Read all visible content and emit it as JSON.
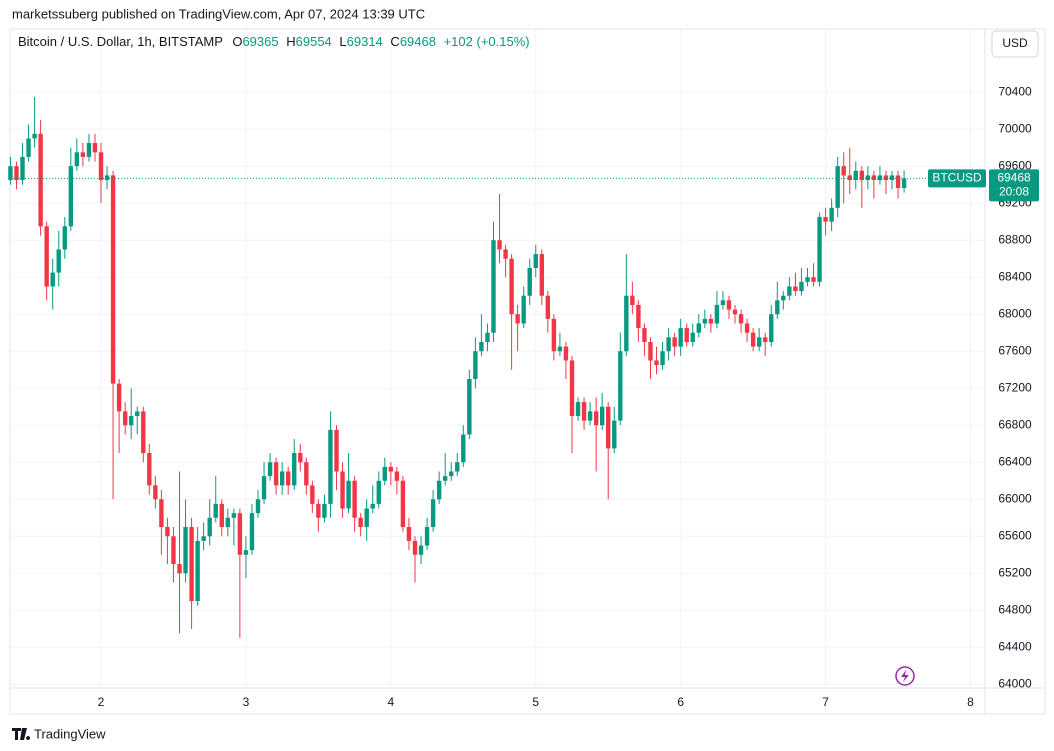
{
  "header": {
    "published": "marketssuberg published on TradingView.com, Apr 07, 2024 13:39 UTC",
    "symbol": "Bitcoin / U.S. Dollar, 1h, BITSTAMP",
    "o_label": "O",
    "open": 69365,
    "h_label": "H",
    "high": 69554,
    "l_label": "L",
    "low": 69314,
    "c_label": "C",
    "close": 69468,
    "change": "+102 (+0.15%)"
  },
  "currency": "USD",
  "logo": "TradingView",
  "chart_data": {
    "type": "candlestick",
    "x": [
      1.375,
      1.4167,
      1.4583,
      1.5,
      1.5417,
      1.5833,
      1.625,
      1.6667,
      1.7083,
      1.75,
      1.7917,
      1.8333,
      1.875,
      1.9167,
      1.9583,
      2,
      2.0417,
      2.0833,
      2.125,
      2.1667,
      2.2083,
      2.25,
      2.2917,
      2.3333,
      2.375,
      2.4167,
      2.4583,
      2.5,
      2.5417,
      2.5833,
      2.625,
      2.6667,
      2.7083,
      2.75,
      2.7917,
      2.8333,
      2.875,
      2.9167,
      2.9583,
      3,
      3.0417,
      3.0833,
      3.125,
      3.1667,
      3.2083,
      3.25,
      3.2917,
      3.3333,
      3.375,
      3.4167,
      3.4583,
      3.5,
      3.5417,
      3.5833,
      3.625,
      3.6667,
      3.7083,
      3.75,
      3.7917,
      3.8333,
      3.875,
      3.9167,
      3.9583,
      4,
      4.0417,
      4.0833,
      4.125,
      4.1667,
      4.2083,
      4.25,
      4.2917,
      4.3333,
      4.375,
      4.4167,
      4.4583,
      4.5,
      4.5417,
      4.5833,
      4.625,
      4.6667,
      4.7083,
      4.75,
      4.7917,
      4.8333,
      4.875,
      4.9167,
      4.9583,
      5,
      5.0417,
      5.0833,
      5.125,
      5.1667,
      5.2083,
      5.25,
      5.2917,
      5.3333,
      5.375,
      5.4167,
      5.4583,
      5.5,
      5.5417,
      5.5833,
      5.625,
      5.6667,
      5.7083,
      5.75,
      5.7917,
      5.8333,
      5.875,
      5.9167,
      5.9583,
      6,
      6.0417,
      6.0833,
      6.125,
      6.1667,
      6.2083,
      6.25,
      6.2917,
      6.3333,
      6.375,
      6.4167,
      6.4583,
      6.5,
      6.5417,
      6.5833,
      6.625,
      6.6667,
      6.7083,
      6.75,
      6.7917,
      6.8333,
      6.875,
      6.9167,
      6.9583,
      7,
      7.0417,
      7.0833,
      7.125,
      7.1667,
      7.2083,
      7.25,
      7.2917,
      7.3333,
      7.375,
      7.4167,
      7.4583,
      7.5,
      7.5417
    ],
    "open": [
      69450,
      69600,
      69450,
      69700,
      69900,
      69950,
      68950,
      68300,
      68450,
      68700,
      68950,
      69600,
      69750,
      69700,
      69850,
      69750,
      69450,
      69500,
      67250,
      66950,
      66800,
      66900,
      66950,
      66500,
      66150,
      66000,
      65700,
      65600,
      65300,
      65200,
      65700,
      64900,
      65550,
      65600,
      65800,
      65950,
      65700,
      65800,
      65850,
      65400,
      65450,
      65850,
      66000,
      66250,
      66400,
      66150,
      66300,
      66150,
      66500,
      66400,
      66150,
      65950,
      65800,
      65950,
      66750,
      66300,
      65900,
      66200,
      65800,
      65700,
      65900,
      65950,
      66200,
      66350,
      66300,
      66200,
      65700,
      65550,
      65400,
      65500,
      65700,
      66000,
      66200,
      66250,
      66300,
      66400,
      66700,
      67300,
      67600,
      67700,
      67800,
      68800,
      68700,
      68600,
      68000,
      67900,
      68200,
      68500,
      68650,
      68200,
      67950,
      67600,
      67650,
      67500,
      66900,
      67050,
      66850,
      66950,
      66800,
      67000,
      66550,
      66850,
      67600,
      68200,
      68100,
      67850,
      67700,
      67500,
      67450,
      67600,
      67750,
      67650,
      67850,
      67700,
      67800,
      67900,
      67950,
      67900,
      68100,
      68150,
      68050,
      68000,
      67900,
      67800,
      67650,
      67750,
      67700,
      68000,
      68150,
      68200,
      68300,
      68250,
      68350,
      68400,
      68350,
      69050,
      69000,
      69150,
      69600,
      69500,
      69450,
      69550,
      69450,
      69500,
      69450,
      69500,
      69450,
      69500,
      69365
    ],
    "high": [
      69700,
      69650,
      69850,
      70050,
      70350,
      70100,
      69000,
      68600,
      68900,
      69050,
      69800,
      69900,
      69850,
      69950,
      69950,
      69850,
      69600,
      69550,
      67300,
      67050,
      67200,
      67000,
      67000,
      66600,
      66250,
      66100,
      65800,
      65700,
      66300,
      66000,
      65800,
      65700,
      65750,
      66000,
      66250,
      66000,
      65900,
      65900,
      65900,
      65600,
      65950,
      66100,
      66400,
      66500,
      66450,
      66400,
      66350,
      66650,
      66600,
      66450,
      66200,
      66000,
      66050,
      66950,
      66800,
      66400,
      66500,
      66250,
      65850,
      66000,
      66150,
      66300,
      66450,
      66400,
      66350,
      66250,
      65800,
      65600,
      65600,
      65800,
      66100,
      66300,
      66500,
      66400,
      66500,
      66800,
      67400,
      67750,
      68000,
      67900,
      69000,
      69300,
      68750,
      68650,
      68100,
      68300,
      68600,
      68750,
      68700,
      68250,
      68000,
      67800,
      67700,
      67550,
      67100,
      67100,
      67050,
      67100,
      67150,
      67050,
      67000,
      67800,
      68650,
      68350,
      68150,
      67900,
      67750,
      67650,
      67700,
      67850,
      67800,
      67950,
      67900,
      67900,
      68000,
      68050,
      68000,
      68250,
      68250,
      68200,
      68100,
      68050,
      67950,
      67850,
      67850,
      67800,
      68100,
      68350,
      68250,
      68400,
      68450,
      68500,
      68500,
      68550,
      69100,
      69150,
      69250,
      69700,
      69750,
      69800,
      69650,
      69600,
      69600,
      69550,
      69600,
      69550,
      69550,
      69550,
      69554
    ],
    "low": [
      69400,
      69350,
      69400,
      69650,
      69800,
      68850,
      68150,
      68050,
      68300,
      68600,
      68900,
      69550,
      69600,
      69650,
      69650,
      69200,
      69350,
      66000,
      66500,
      66700,
      66650,
      66700,
      66400,
      66050,
      65900,
      65400,
      65300,
      65100,
      64550,
      65100,
      64600,
      64850,
      65450,
      65500,
      65750,
      65600,
      65600,
      65500,
      64500,
      65150,
      65400,
      65800,
      65950,
      66200,
      66050,
      66050,
      66050,
      66100,
      66300,
      66050,
      65850,
      65650,
      65750,
      65800,
      66100,
      65800,
      65850,
      65650,
      65600,
      65550,
      65850,
      65900,
      66150,
      66150,
      66050,
      65650,
      65450,
      65100,
      65300,
      65450,
      65650,
      65950,
      66150,
      66200,
      66250,
      66350,
      66650,
      67200,
      67550,
      67600,
      67700,
      68550,
      68400,
      67400,
      67600,
      67850,
      68100,
      68400,
      68100,
      67800,
      67500,
      67550,
      67300,
      66500,
      66850,
      66750,
      66800,
      66300,
      66750,
      66000,
      66500,
      66800,
      67550,
      68000,
      67700,
      67550,
      67300,
      67350,
      67400,
      67500,
      67550,
      67550,
      67650,
      67650,
      67750,
      67850,
      67800,
      67850,
      68050,
      67950,
      67900,
      67800,
      67700,
      67600,
      67600,
      67550,
      67650,
      67950,
      68050,
      68150,
      68200,
      68200,
      68300,
      68300,
      68300,
      68850,
      68900,
      69050,
      69200,
      69300,
      69350,
      69150,
      69350,
      69250,
      69400,
      69300,
      69350,
      69250,
      69314
    ],
    "close": [
      69600,
      69450,
      69700,
      69900,
      69950,
      68950,
      68300,
      68450,
      68700,
      68950,
      69600,
      69750,
      69700,
      69850,
      69750,
      69450,
      69500,
      67250,
      66950,
      66800,
      66900,
      66950,
      66500,
      66150,
      66000,
      65700,
      65600,
      65300,
      65200,
      65700,
      64900,
      65550,
      65600,
      65800,
      65950,
      65700,
      65800,
      65850,
      65400,
      65450,
      65850,
      66000,
      66250,
      66400,
      66150,
      66300,
      66150,
      66500,
      66400,
      66150,
      65950,
      65800,
      65950,
      66750,
      66300,
      65900,
      66200,
      65800,
      65700,
      65900,
      65950,
      66200,
      66350,
      66300,
      66200,
      65700,
      65550,
      65400,
      65500,
      65700,
      66000,
      66200,
      66250,
      66300,
      66400,
      66700,
      67300,
      67600,
      67700,
      67800,
      68800,
      68700,
      68600,
      68000,
      67900,
      68200,
      68500,
      68650,
      68200,
      67950,
      67600,
      67650,
      67500,
      66900,
      67050,
      66850,
      66950,
      66800,
      67000,
      66550,
      66850,
      67600,
      68200,
      68100,
      67850,
      67700,
      67500,
      67450,
      67600,
      67750,
      67650,
      67850,
      67700,
      67800,
      67900,
      67950,
      67900,
      68100,
      68150,
      68050,
      68000,
      67900,
      67800,
      67650,
      67750,
      67700,
      68000,
      68150,
      68200,
      68300,
      68250,
      68350,
      68400,
      68350,
      69050,
      69000,
      69150,
      69600,
      69500,
      69450,
      69550,
      69450,
      69500,
      69450,
      69500,
      69450,
      69500,
      69365,
      69468
    ],
    "up_color": "#089981",
    "down_color": "#f23645",
    "ylim": [
      63690,
      70780
    ],
    "yticks": [
      64000,
      64400,
      64800,
      65200,
      65600,
      66000,
      66400,
      66800,
      67200,
      67600,
      68000,
      68400,
      68800,
      69200,
      69600,
      70000,
      70400
    ],
    "xlim": [
      1.372,
      8.1
    ],
    "xticks": [
      2,
      3,
      4,
      5,
      6,
      7,
      8
    ],
    "grid": true,
    "last_price": {
      "label": "BTCUSD",
      "value": 69468,
      "countdown": "20:08"
    }
  }
}
